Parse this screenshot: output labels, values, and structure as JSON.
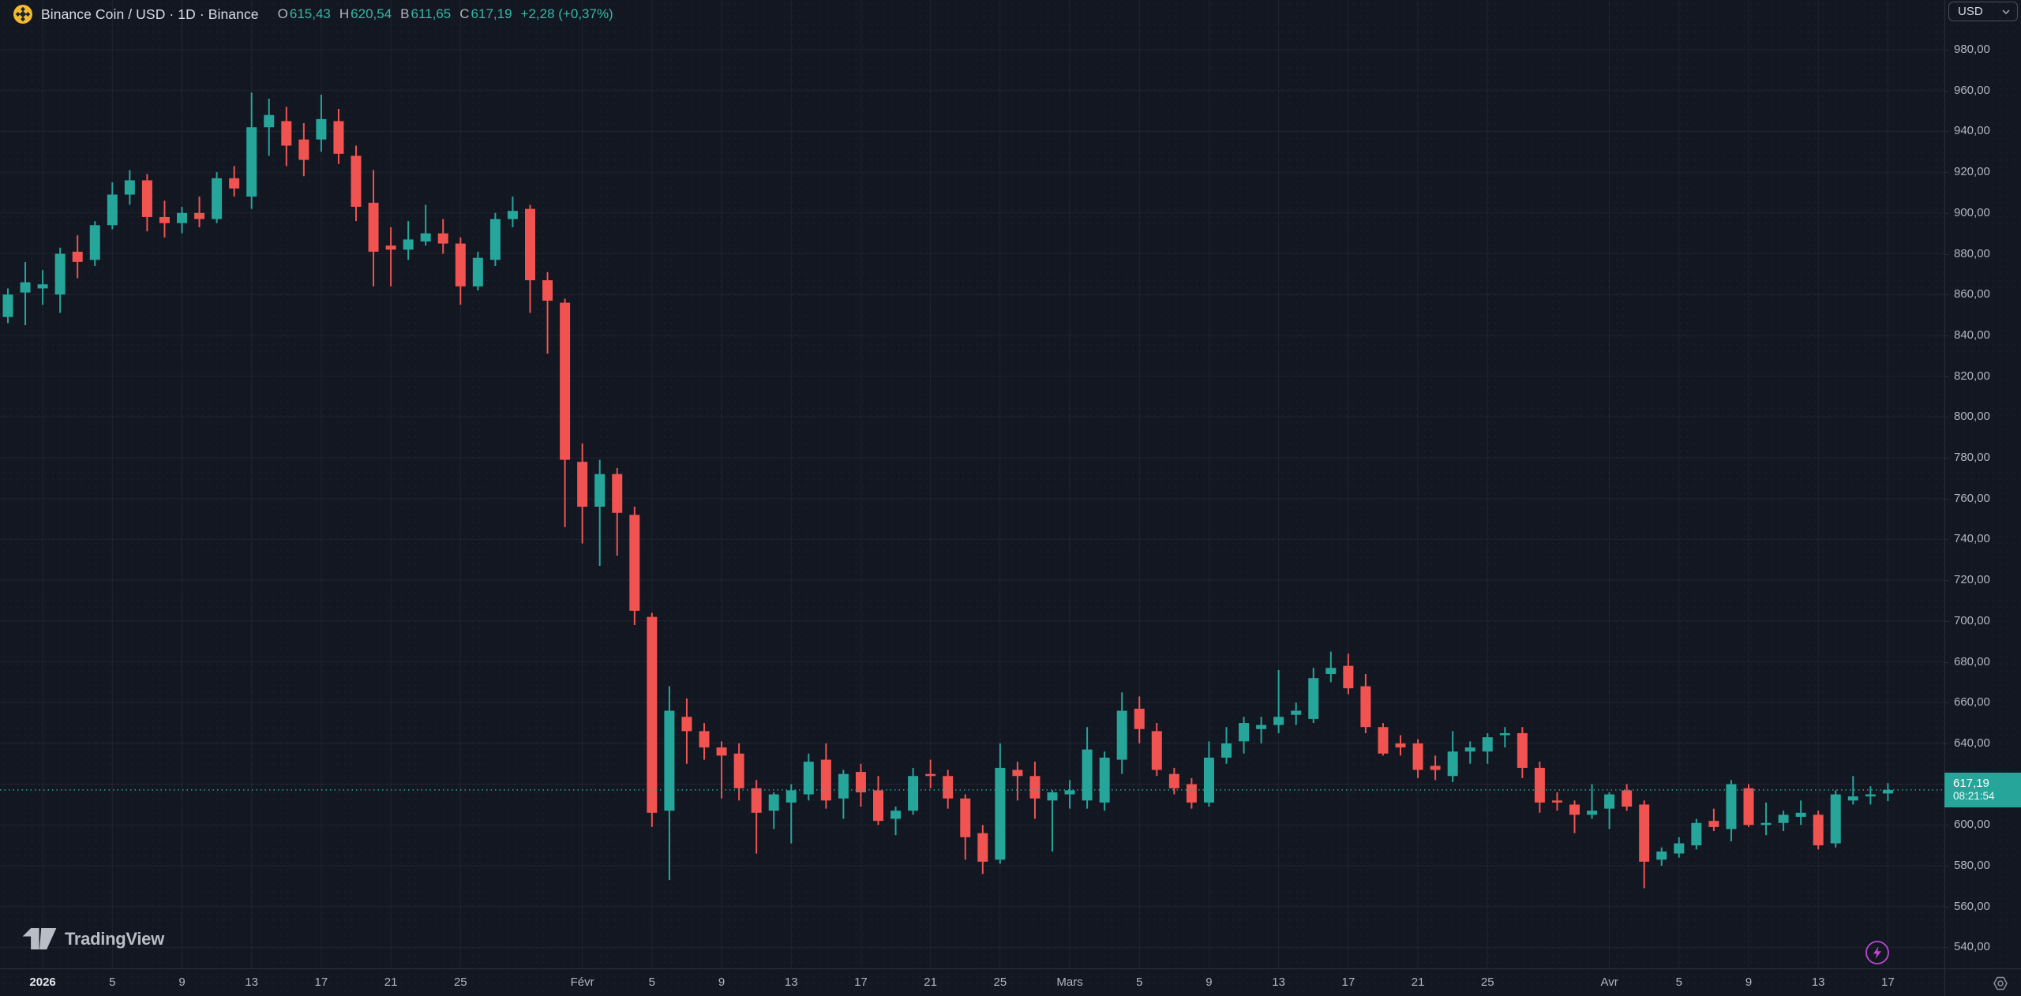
{
  "header": {
    "title": "Binance Coin / USD · 1D · Binance",
    "ohlc": {
      "open_label": "O",
      "open": "615,43",
      "high_label": "H",
      "high": "620,54",
      "low_label": "B",
      "low": "611,65",
      "close_label": "C",
      "close": "617,19",
      "change": "+2,28 (+0,37%)"
    }
  },
  "currency_button": {
    "label": "USD"
  },
  "watermark": {
    "logo_text": "TradingView"
  },
  "price_label": {
    "price": "617,19",
    "countdown": "08:21:54"
  },
  "price_axis": {
    "labels": [
      "980,00",
      "960,00",
      "940,00",
      "920,00",
      "900,00",
      "880,00",
      "860,00",
      "840,00",
      "820,00",
      "800,00",
      "780,00",
      "760,00",
      "740,00",
      "720,00",
      "700,00",
      "680,00",
      "660,00",
      "640,00",
      "620,00",
      "600,00",
      "580,00",
      "560,00",
      "540,00"
    ],
    "values": [
      980,
      960,
      940,
      920,
      900,
      880,
      860,
      840,
      820,
      800,
      780,
      760,
      740,
      720,
      700,
      680,
      660,
      640,
      620,
      600,
      580,
      560,
      540
    ]
  },
  "time_axis": {
    "ticks": [
      {
        "label": "2026",
        "i": 2,
        "year": true
      },
      {
        "label": "5",
        "i": 6
      },
      {
        "label": "9",
        "i": 10
      },
      {
        "label": "13",
        "i": 14
      },
      {
        "label": "17",
        "i": 18
      },
      {
        "label": "21",
        "i": 22
      },
      {
        "label": "25",
        "i": 26
      },
      {
        "label": "Févr",
        "i": 33
      },
      {
        "label": "5",
        "i": 37
      },
      {
        "label": "9",
        "i": 41
      },
      {
        "label": "13",
        "i": 45
      },
      {
        "label": "17",
        "i": 49
      },
      {
        "label": "21",
        "i": 53
      },
      {
        "label": "25",
        "i": 57
      },
      {
        "label": "Mars",
        "i": 61
      },
      {
        "label": "5",
        "i": 65
      },
      {
        "label": "9",
        "i": 69
      },
      {
        "label": "13",
        "i": 73
      },
      {
        "label": "17",
        "i": 77
      },
      {
        "label": "21",
        "i": 81
      },
      {
        "label": "25",
        "i": 85
      },
      {
        "label": "Avr",
        "i": 92
      },
      {
        "label": "5",
        "i": 96
      },
      {
        "label": "9",
        "i": 100
      },
      {
        "label": "13",
        "i": 104
      },
      {
        "label": "17",
        "i": 108
      }
    ]
  },
  "colors": {
    "up": "#26a69a",
    "down": "#f05350",
    "text_up": "#35b8a6",
    "grid": "rgba(255,255,255,0.055)",
    "axis_text": "#b2b5be",
    "purple": "#b94ad1",
    "gold": "#f3ba2f",
    "icon_gray": "#8b8f9b",
    "label_bg": "#26a69a"
  },
  "chart_data": {
    "type": "candlestick",
    "symbol": "Binance Coin / USD",
    "exchange": "Binance",
    "interval": "1D",
    "current_price": 617.19,
    "price_axis_range": [
      540,
      980
    ],
    "grid": true,
    "candles": [
      [
        "2025-12-30",
        849,
        863,
        846,
        860
      ],
      [
        "2025-12-31",
        861,
        876,
        845,
        866
      ],
      [
        "2026-01-01",
        863,
        872,
        855,
        865
      ],
      [
        "2026-01-02",
        860,
        883,
        851,
        880
      ],
      [
        "2026-01-03",
        881,
        889,
        868,
        876
      ],
      [
        "2026-01-04",
        877,
        896,
        874,
        894
      ],
      [
        "2026-01-05",
        894,
        915,
        892,
        909
      ],
      [
        "2026-01-06",
        909,
        921,
        904,
        916
      ],
      [
        "2026-01-07",
        916,
        919,
        891,
        898
      ],
      [
        "2026-01-08",
        898,
        906,
        888,
        895
      ],
      [
        "2026-01-09",
        895,
        903,
        890,
        900
      ],
      [
        "2026-01-10",
        900,
        908,
        893,
        897
      ],
      [
        "2026-01-11",
        897,
        920,
        895,
        917
      ],
      [
        "2026-01-12",
        917,
        923,
        908,
        912
      ],
      [
        "2026-01-13",
        908,
        959,
        902,
        942
      ],
      [
        "2026-01-14",
        942,
        956,
        928,
        948
      ],
      [
        "2026-01-15",
        945,
        952,
        923,
        933
      ],
      [
        "2026-01-16",
        936,
        944,
        918,
        926
      ],
      [
        "2026-01-17",
        936,
        958,
        930,
        946
      ],
      [
        "2026-01-18",
        945,
        951,
        924,
        929
      ],
      [
        "2026-01-19",
        928,
        933,
        896,
        903
      ],
      [
        "2026-01-20",
        905,
        921,
        864,
        881
      ],
      [
        "2026-01-21",
        884,
        893,
        864,
        882
      ],
      [
        "2026-01-22",
        882,
        896,
        877,
        887
      ],
      [
        "2026-01-23",
        886,
        904,
        884,
        890
      ],
      [
        "2026-01-24",
        890,
        897,
        880,
        885
      ],
      [
        "2026-01-25",
        885,
        888,
        855,
        864
      ],
      [
        "2026-01-26",
        864,
        881,
        862,
        878
      ],
      [
        "2026-01-27",
        877,
        900,
        874,
        897
      ],
      [
        "2026-01-28",
        897,
        908,
        893,
        901
      ],
      [
        "2026-01-29",
        902,
        904,
        851,
        867
      ],
      [
        "2026-01-30",
        867,
        871,
        831,
        857
      ],
      [
        "2026-01-31",
        856,
        858,
        746,
        779
      ],
      [
        "2026-02-01",
        778,
        787,
        738,
        756
      ],
      [
        "2026-02-02",
        756,
        779,
        727,
        772
      ],
      [
        "2026-02-03",
        772,
        775,
        732,
        753
      ],
      [
        "2026-02-04",
        752,
        756,
        698,
        705
      ],
      [
        "2026-02-05",
        702,
        704,
        599,
        606
      ],
      [
        "2026-02-06",
        607,
        668,
        573,
        656
      ],
      [
        "2026-02-07",
        653,
        662,
        630,
        646
      ],
      [
        "2026-02-08",
        646,
        650,
        632,
        638
      ],
      [
        "2026-02-09",
        638,
        641,
        613,
        634
      ],
      [
        "2026-02-10",
        635,
        640,
        612,
        618
      ],
      [
        "2026-02-11",
        618,
        622,
        586,
        606
      ],
      [
        "2026-02-12",
        607,
        616,
        598,
        615
      ],
      [
        "2026-02-13",
        611,
        620,
        591,
        617
      ],
      [
        "2026-02-14",
        615,
        635,
        612,
        631
      ],
      [
        "2026-02-15",
        632,
        640,
        608,
        612
      ],
      [
        "2026-02-16",
        613,
        627,
        603,
        625
      ],
      [
        "2026-02-17",
        626,
        630,
        609,
        616
      ],
      [
        "2026-02-18",
        617,
        624,
        600,
        602
      ],
      [
        "2026-02-19",
        603,
        609,
        595,
        607
      ],
      [
        "2026-02-20",
        607,
        628,
        605,
        624
      ],
      [
        "2026-02-21",
        625,
        632,
        618,
        624
      ],
      [
        "2026-02-22",
        624,
        627,
        608,
        613
      ],
      [
        "2026-02-23",
        613,
        615,
        583,
        594
      ],
      [
        "2026-02-24",
        596,
        600,
        576,
        582
      ],
      [
        "2026-02-25",
        583,
        640,
        581,
        628
      ],
      [
        "2026-02-26",
        627,
        631,
        612,
        624
      ],
      [
        "2026-02-27",
        624,
        631,
        603,
        613
      ],
      [
        "2026-02-28",
        612,
        617,
        587,
        616
      ],
      [
        "2026-03-01",
        615,
        622,
        608,
        617
      ],
      [
        "2026-03-02",
        612,
        648,
        608,
        637
      ],
      [
        "2026-03-03",
        611,
        636,
        607,
        633
      ],
      [
        "2026-03-04",
        632,
        665,
        625,
        656
      ],
      [
        "2026-03-05",
        657,
        663,
        640,
        647
      ],
      [
        "2026-03-06",
        646,
        650,
        624,
        627
      ],
      [
        "2026-03-07",
        625,
        628,
        615,
        618
      ],
      [
        "2026-03-08",
        620,
        623,
        608,
        611
      ],
      [
        "2026-03-09",
        611,
        641,
        609,
        633
      ],
      [
        "2026-03-10",
        633,
        648,
        630,
        640
      ],
      [
        "2026-03-11",
        641,
        653,
        635,
        650
      ],
      [
        "2026-03-12",
        647,
        653,
        640,
        649
      ],
      [
        "2026-03-13",
        649,
        676,
        645,
        653
      ],
      [
        "2026-03-14",
        654,
        660,
        649,
        656
      ],
      [
        "2026-03-15",
        652,
        677,
        650,
        672
      ],
      [
        "2026-03-16",
        674,
        685,
        670,
        677
      ],
      [
        "2026-03-17",
        678,
        684,
        664,
        667
      ],
      [
        "2026-03-18",
        668,
        674,
        645,
        648
      ],
      [
        "2026-03-19",
        648,
        650,
        634,
        635
      ],
      [
        "2026-03-20",
        640,
        644,
        634,
        638
      ],
      [
        "2026-03-21",
        640,
        642,
        623,
        627
      ],
      [
        "2026-03-22",
        629,
        634,
        622,
        627
      ],
      [
        "2026-03-23",
        624,
        646,
        621,
        636
      ],
      [
        "2026-03-24",
        636,
        641,
        630,
        638
      ],
      [
        "2026-03-25",
        636,
        645,
        630,
        643
      ],
      [
        "2026-03-26",
        644,
        648,
        638,
        645
      ],
      [
        "2026-03-27",
        645,
        648,
        623,
        628
      ],
      [
        "2026-03-28",
        628,
        631,
        606,
        611
      ],
      [
        "2026-03-29",
        612,
        616,
        607,
        611
      ],
      [
        "2026-03-30",
        610,
        612,
        596,
        605
      ],
      [
        "2026-03-31",
        605,
        620,
        603,
        607
      ],
      [
        "2026-04-01",
        608,
        616,
        598,
        615
      ],
      [
        "2026-04-02",
        617,
        620,
        607,
        609
      ],
      [
        "2026-04-03",
        610,
        612,
        569,
        582
      ],
      [
        "2026-04-04",
        583,
        589,
        580,
        587
      ],
      [
        "2026-04-05",
        586,
        594,
        584,
        591
      ],
      [
        "2026-04-06",
        590,
        603,
        588,
        601
      ],
      [
        "2026-04-07",
        602,
        608,
        597,
        599
      ],
      [
        "2026-04-08",
        598,
        622,
        592,
        620
      ],
      [
        "2026-04-09",
        618,
        620,
        599,
        600
      ],
      [
        "2026-04-10",
        600,
        611,
        595,
        601
      ],
      [
        "2026-04-11",
        601,
        607,
        597,
        605
      ],
      [
        "2026-04-12",
        604,
        612,
        600,
        606
      ],
      [
        "2026-04-13",
        605,
        607,
        588,
        590
      ],
      [
        "2026-04-14",
        591,
        617,
        589,
        615
      ],
      [
        "2026-04-15",
        612,
        624,
        610,
        614
      ],
      [
        "2026-04-16",
        614,
        619,
        610,
        615
      ],
      [
        "2026-04-17",
        615.43,
        620.54,
        611.65,
        617.19
      ]
    ]
  }
}
